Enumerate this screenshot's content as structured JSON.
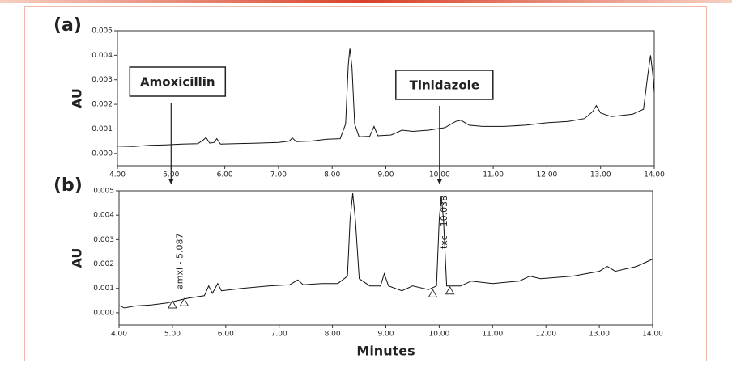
{
  "chart_data": [
    {
      "type": "line",
      "panel_label": "(a)",
      "y_label": "AU",
      "color": "#111111",
      "xlim": [
        4,
        14
      ],
      "ylim": [
        -0.0005,
        0.005
      ],
      "xticks": [
        {
          "value": 4,
          "label": "4.00"
        },
        {
          "value": 5,
          "label": "5.00"
        },
        {
          "value": 6,
          "label": "6.00"
        },
        {
          "value": 7,
          "label": "7.00"
        },
        {
          "value": 8,
          "label": "8.00"
        },
        {
          "value": 9,
          "label": "9.00"
        },
        {
          "value": 10,
          "label": "10.00"
        },
        {
          "value": 11,
          "label": "11.00"
        },
        {
          "value": 12,
          "label": "12.00"
        },
        {
          "value": 13,
          "label": "13.00"
        },
        {
          "value": 14,
          "label": "14.00"
        }
      ],
      "yticks": [
        {
          "value": 0,
          "label": "0.000"
        },
        0.001,
        0.002,
        0.003,
        0.004,
        0.005
      ],
      "x": [
        4.0,
        4.3,
        4.6,
        4.9,
        5.2,
        5.5,
        5.6,
        5.65,
        5.72,
        5.8,
        5.85,
        5.92,
        6.2,
        6.6,
        7.0,
        7.2,
        7.26,
        7.33,
        7.6,
        7.9,
        8.15,
        8.25,
        8.3,
        8.33,
        8.37,
        8.42,
        8.5,
        8.7,
        8.78,
        8.85,
        9.1,
        9.3,
        9.5,
        9.8,
        10.1,
        10.3,
        10.4,
        10.55,
        10.8,
        11.2,
        11.6,
        12.0,
        12.4,
        12.7,
        12.85,
        12.92,
        13.0,
        13.2,
        13.6,
        13.8,
        13.88,
        13.93,
        13.97,
        14.0
      ],
      "values": [
        0.0003,
        0.00028,
        0.00033,
        0.00035,
        0.00038,
        0.0004,
        0.00055,
        0.00065,
        0.00042,
        0.00045,
        0.0006,
        0.00038,
        0.0004,
        0.00042,
        0.00045,
        0.0005,
        0.00063,
        0.00048,
        0.0005,
        0.00058,
        0.0006,
        0.0012,
        0.0036,
        0.0043,
        0.0035,
        0.0012,
        0.00068,
        0.0007,
        0.0011,
        0.00072,
        0.00075,
        0.00095,
        0.0009,
        0.00095,
        0.00105,
        0.0013,
        0.00135,
        0.00115,
        0.0011,
        0.0011,
        0.00115,
        0.00125,
        0.0013,
        0.00142,
        0.0017,
        0.00195,
        0.00165,
        0.0015,
        0.0016,
        0.0018,
        0.0032,
        0.004,
        0.0033,
        0.0025
      ],
      "annotations": [
        {
          "x": 5,
          "label": "Amoxicillin"
        },
        {
          "x": 10,
          "label": "Tinidazole"
        }
      ]
    },
    {
      "type": "line",
      "panel_label": "(b)",
      "y_label": "AU",
      "x_label": "Minutes",
      "color": "#111111",
      "xlim": [
        4,
        14
      ],
      "ylim": [
        -0.0005,
        0.005
      ],
      "xticks": [
        {
          "value": 4,
          "label": "4.00"
        },
        {
          "value": 5,
          "label": "5.00"
        },
        {
          "value": 6,
          "label": "6.00"
        },
        {
          "value": 7,
          "label": "7.00"
        },
        {
          "value": 8,
          "label": "8.00"
        },
        {
          "value": 9,
          "label": "9.00"
        },
        {
          "value": 10,
          "label": "10.00"
        },
        {
          "value": 11,
          "label": "11.00"
        },
        {
          "value": 12,
          "label": "12.00"
        },
        {
          "value": 13,
          "label": "13.00"
        },
        {
          "value": 14,
          "label": "14.00"
        }
      ],
      "yticks": [
        {
          "value": 0,
          "label": "0.000"
        },
        0.001,
        0.002,
        0.003,
        0.004,
        0.005
      ],
      "x": [
        4.0,
        4.1,
        4.3,
        4.6,
        4.9,
        5.1,
        5.3,
        5.6,
        5.68,
        5.75,
        5.85,
        5.92,
        6.3,
        6.8,
        7.2,
        7.35,
        7.45,
        7.8,
        8.1,
        8.28,
        8.33,
        8.38,
        8.43,
        8.5,
        8.7,
        8.9,
        8.97,
        9.05,
        9.3,
        9.5,
        9.8,
        9.95,
        10.0,
        10.04,
        10.08,
        10.14,
        10.4,
        10.6,
        11.0,
        11.5,
        11.7,
        11.9,
        12.5,
        13.0,
        13.15,
        13.3,
        13.7,
        14.0
      ],
      "values": [
        0.0003,
        0.0002,
        0.00028,
        0.00032,
        0.0004,
        0.0005,
        0.0006,
        0.0007,
        0.0011,
        0.0008,
        0.0012,
        0.0009,
        0.001,
        0.0011,
        0.00115,
        0.00135,
        0.00115,
        0.0012,
        0.0012,
        0.0015,
        0.0038,
        0.0049,
        0.0038,
        0.0014,
        0.0011,
        0.0011,
        0.0016,
        0.0011,
        0.0009,
        0.0011,
        0.00095,
        0.0011,
        0.0038,
        0.0048,
        0.0038,
        0.0011,
        0.0011,
        0.0013,
        0.0012,
        0.0013,
        0.0015,
        0.0014,
        0.0015,
        0.0017,
        0.0019,
        0.0017,
        0.0019,
        0.0022
      ],
      "markers": {
        "x": [
          5.0,
          5.22,
          9.88,
          10.2
        ],
        "values": [
          0.00033,
          0.00042,
          0.00078,
          0.0009
        ]
      },
      "peak_labels": [
        {
          "x": 5.087,
          "label": "amxl - 5.087"
        },
        {
          "x": 10.038,
          "label": "txc - 10.038"
        }
      ]
    }
  ]
}
